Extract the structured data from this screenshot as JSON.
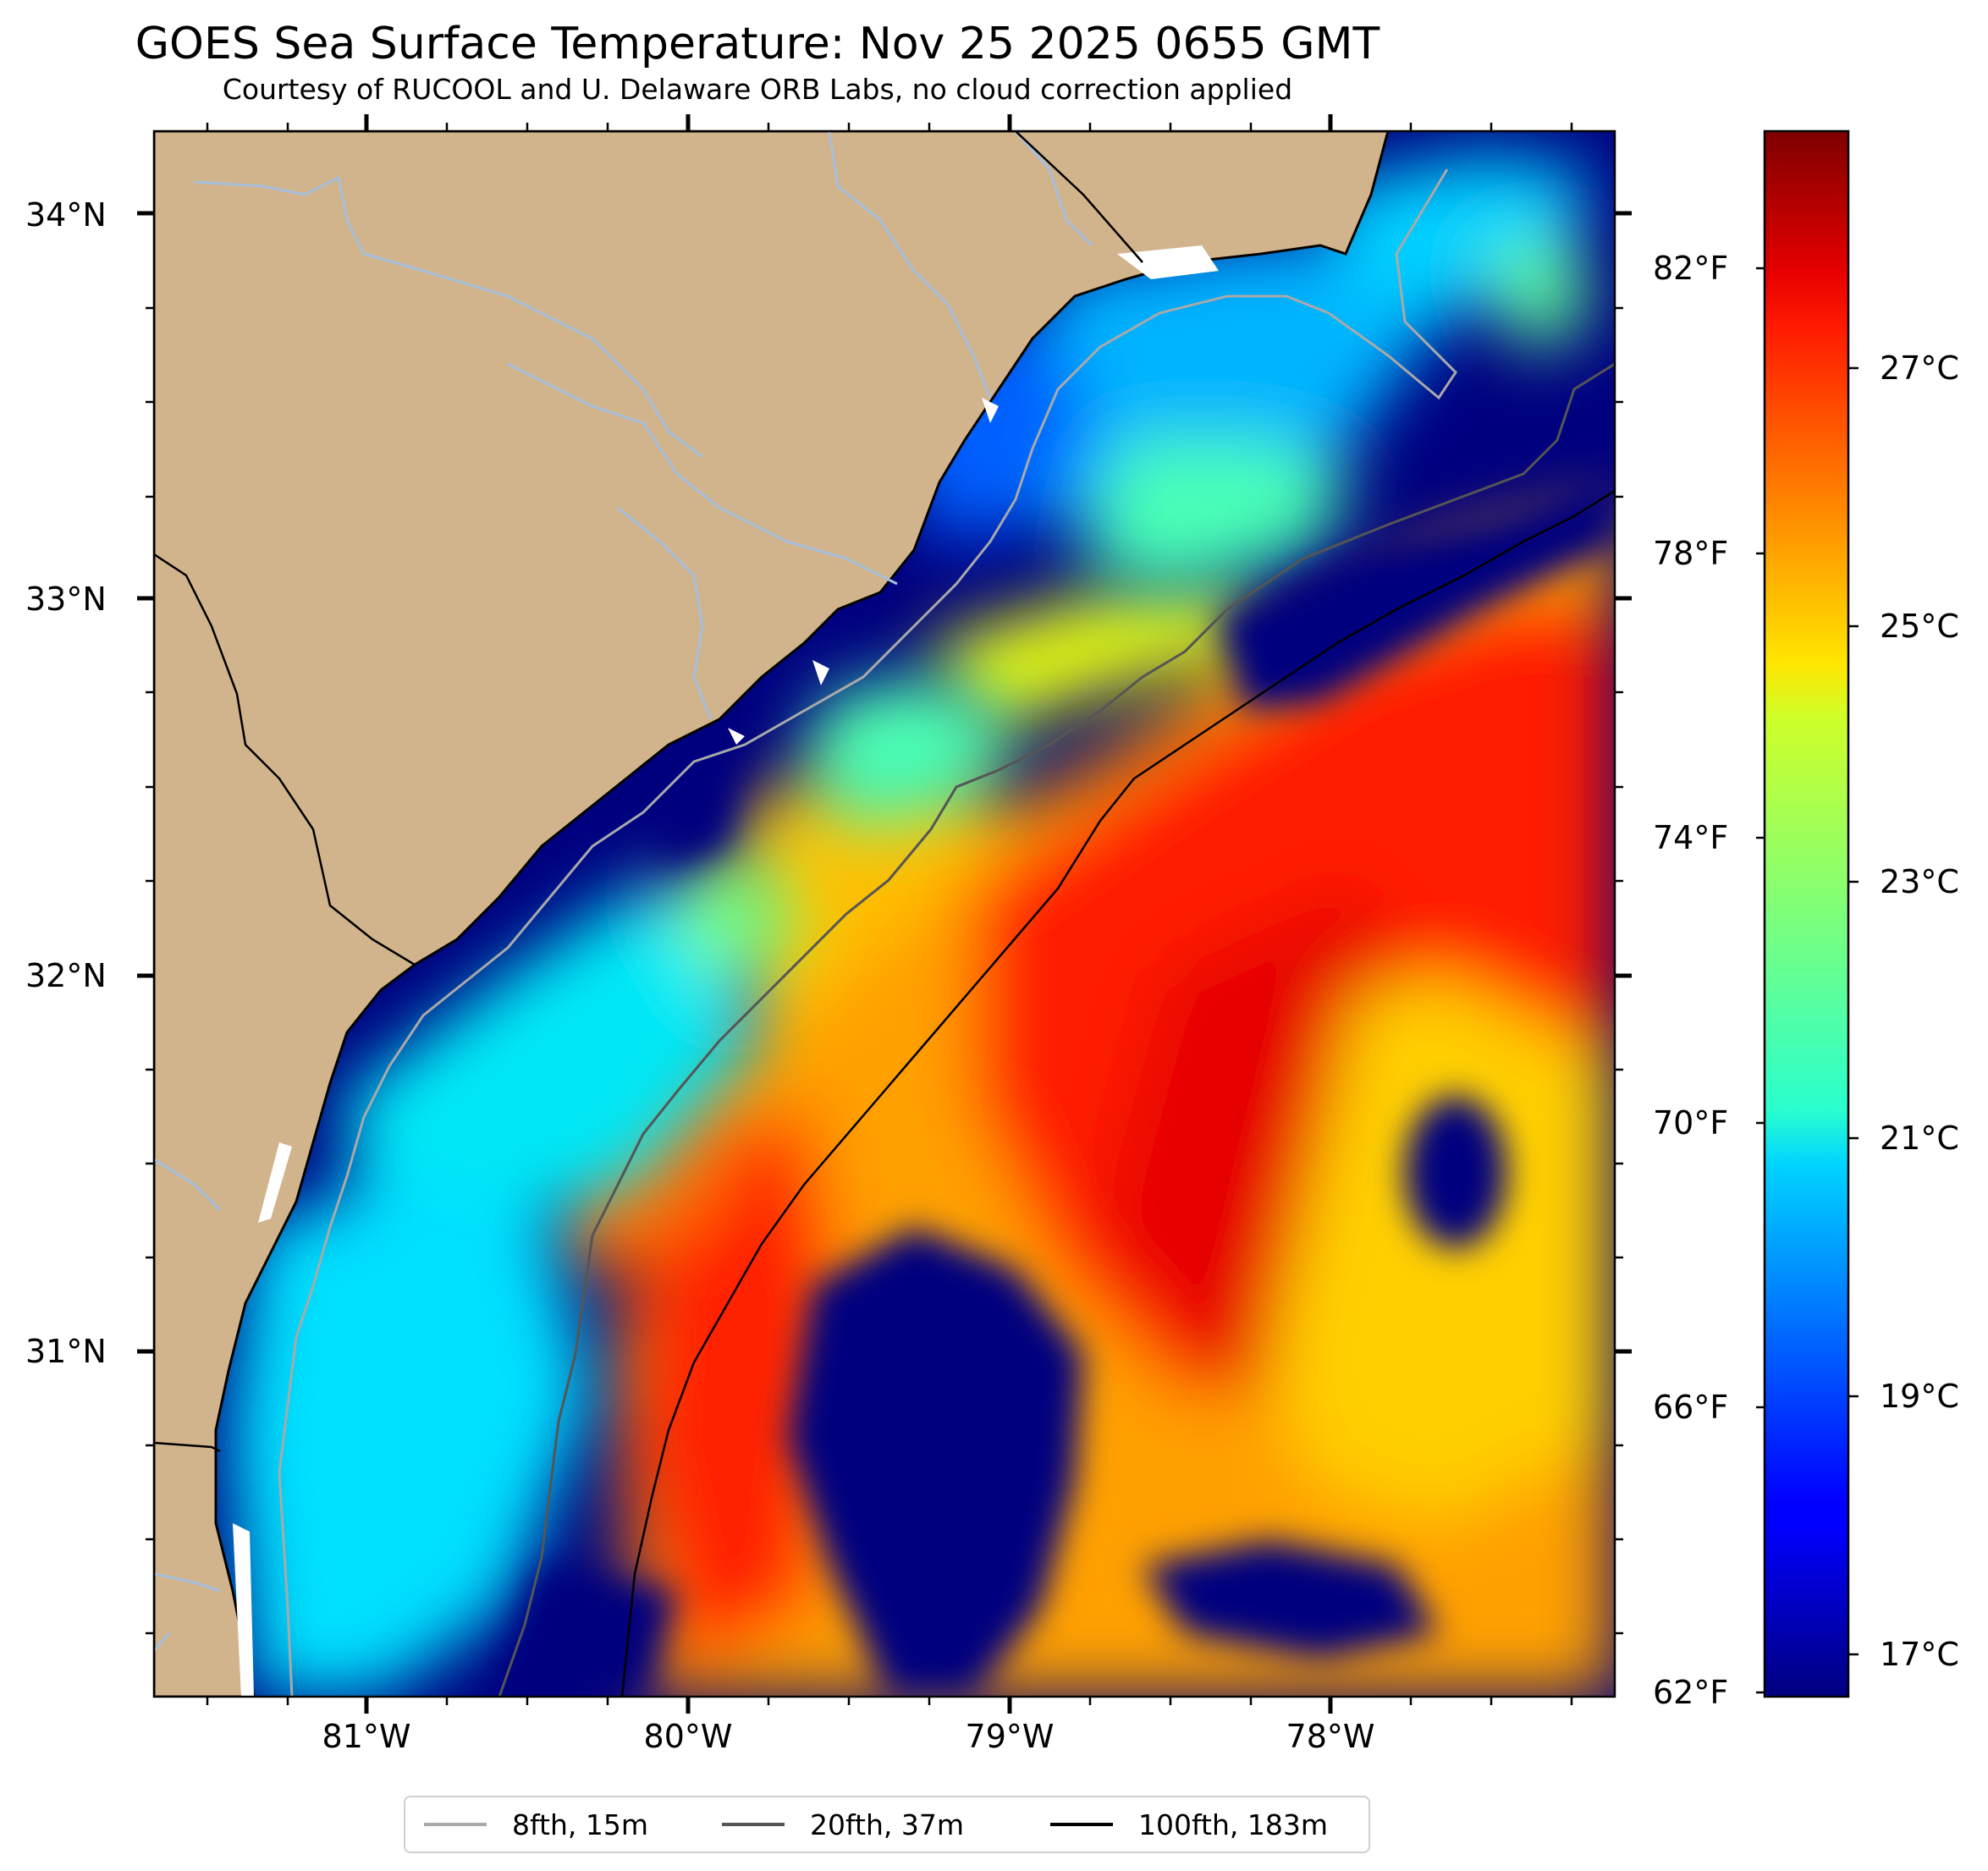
{
  "title": "GOES Sea Surface Temperature: Nov 25 2025 0655 GMT",
  "subtitle": "Courtesy of RUCOOL and U. Delaware ORB Labs, no cloud correction applied",
  "map": {
    "lat_labels": [
      {
        "text": "34°N",
        "lat": 34
      },
      {
        "text": "33°N",
        "lat": 33
      },
      {
        "text": "32°N",
        "lat": 32
      },
      {
        "text": "31°N",
        "lat": 31
      }
    ],
    "lon_labels": [
      {
        "text": "81°W",
        "lon": -81
      },
      {
        "text": "80°W",
        "lon": -80
      },
      {
        "text": "79°W",
        "lon": -79
      },
      {
        "text": "78°W",
        "lon": -78
      }
    ],
    "colors": {
      "land": "#d2b48c",
      "coast": "#000000",
      "rivers": "#a5bfdd",
      "no_data": "#ffffff"
    }
  },
  "colorbar": {
    "colormap": "jet",
    "fahrenheit_labels": [
      "82°F",
      "78°F",
      "74°F",
      "70°F",
      "66°F",
      "62°F"
    ],
    "celsius_labels": [
      "27°C",
      "25°C",
      "23°C",
      "21°C",
      "19°C",
      "17°C"
    ]
  },
  "legend": [
    {
      "label": "8fth, 15m",
      "color": "#a9a9a9"
    },
    {
      "label": "20fth, 37m",
      "color": "#555555"
    },
    {
      "label": "100fth, 183m",
      "color": "#000000"
    }
  ]
}
